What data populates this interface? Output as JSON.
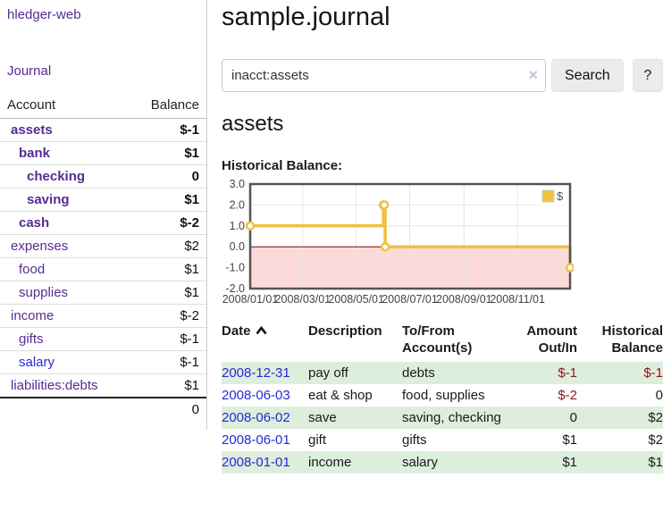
{
  "app": {
    "name": "hledger-web"
  },
  "sidebar": {
    "journal_label": "Journal",
    "account_header": "Account",
    "balance_header": "Balance",
    "accounts": [
      {
        "label": "assets",
        "depth": 1,
        "bold": true,
        "link_color": "purple",
        "balance": "$-1",
        "balance_class": "neg-strong"
      },
      {
        "label": "bank",
        "depth": 2,
        "bold": true,
        "link_color": "purple",
        "balance": "$1",
        "balance_class": ""
      },
      {
        "label": "checking",
        "depth": 3,
        "bold": true,
        "link_color": "purple",
        "balance": "0",
        "balance_class": ""
      },
      {
        "label": "saving",
        "depth": 3,
        "bold": true,
        "link_color": "purple",
        "balance": "$1",
        "balance_class": ""
      },
      {
        "label": "cash",
        "depth": 2,
        "bold": true,
        "link_color": "purple",
        "balance": "$-2",
        "balance_class": "neg-strong"
      },
      {
        "label": "expenses",
        "depth": 1,
        "bold": false,
        "link_color": "purple",
        "balance": "$2",
        "balance_class": ""
      },
      {
        "label": "food",
        "depth": 2,
        "bold": false,
        "link_color": "purple",
        "balance": "$1",
        "balance_class": ""
      },
      {
        "label": "supplies",
        "depth": 2,
        "bold": false,
        "link_color": "purple",
        "balance": "$1",
        "balance_class": ""
      },
      {
        "label": "income",
        "depth": 1,
        "bold": false,
        "link_color": "purple",
        "balance": "$-2",
        "balance_class": "neg-muted"
      },
      {
        "label": "gifts",
        "depth": 2,
        "bold": false,
        "link_color": "purple",
        "balance": "$-1",
        "balance_class": "neg-muted"
      },
      {
        "label": "salary",
        "depth": 2,
        "bold": false,
        "link_color": "blue",
        "balance": "$-1",
        "balance_class": "neg-muted"
      },
      {
        "label": "liabilities:debts",
        "depth": 1,
        "bold": false,
        "link_color": "purple",
        "balance": "$1",
        "balance_class": ""
      }
    ],
    "total": "0"
  },
  "main": {
    "title": "sample.journal",
    "search": {
      "value": "inacct:assets",
      "clear": "×",
      "button": "Search",
      "help": "?"
    },
    "section_title": "assets",
    "chart_label": "Historical Balance:"
  },
  "chart_data": {
    "type": "line",
    "title": "Historical Balance:",
    "series": [
      {
        "name": "$",
        "step": true,
        "points": [
          [
            "2008-01-01",
            1
          ],
          [
            "2008-06-01",
            2
          ],
          [
            "2008-06-02",
            2
          ],
          [
            "2008-06-03",
            0
          ],
          [
            "2008-12-31",
            -1
          ]
        ]
      }
    ],
    "x_range": [
      "2008-01-01",
      "2008-12-31"
    ],
    "x_ticks": [
      {
        "date": "2008-01-01",
        "label": "2008/01/01"
      },
      {
        "date": "2008-03-01",
        "label": "2008/03/01"
      },
      {
        "date": "2008-05-01",
        "label": "2008/05/01"
      },
      {
        "date": "2008-07-01",
        "label": "2008/07/01"
      },
      {
        "date": "2008-09-01",
        "label": "2008/09/01"
      },
      {
        "date": "2008-11-01",
        "label": "2008/11/01"
      }
    ],
    "y_ticks": [
      3.0,
      2.0,
      1.0,
      0.0,
      -1.0,
      -2.0
    ],
    "ylim": [
      -2,
      3
    ],
    "legend_position": "top-right",
    "grid": true,
    "colors": {
      "line": "#edc240",
      "grid": "#e6e6e6",
      "border": "#545454",
      "zero_line": "#8b0000",
      "negative_region": "#fbdada",
      "tick_text": "#444444"
    }
  },
  "register": {
    "headers": {
      "date": "Date",
      "description": "Description",
      "tofrom_l1": "To/From",
      "tofrom_l2": "Account(s)",
      "amount_l1": "Amount",
      "amount_l2": "Out/In",
      "balance_l1": "Historical",
      "balance_l2": "Balance"
    },
    "rows": [
      {
        "date": "2008-12-31",
        "description": "pay off",
        "accounts": "debts",
        "amount": "$-1",
        "amount_negative": true,
        "balance": "$-1",
        "balance_negative": true
      },
      {
        "date": "2008-06-03",
        "description": "eat & shop",
        "accounts": "food, supplies",
        "amount": "$-2",
        "amount_negative": true,
        "balance": "0",
        "balance_negative": false
      },
      {
        "date": "2008-06-02",
        "description": "save",
        "accounts": "saving, checking",
        "amount": "0",
        "amount_negative": false,
        "balance": "$2",
        "balance_negative": false
      },
      {
        "date": "2008-06-01",
        "description": "gift",
        "accounts": "gifts",
        "amount": "$1",
        "amount_negative": false,
        "balance": "$2",
        "balance_negative": false
      },
      {
        "date": "2008-01-01",
        "description": "income",
        "accounts": "salary",
        "amount": "$1",
        "amount_negative": false,
        "balance": "$1",
        "balance_negative": false
      }
    ]
  }
}
